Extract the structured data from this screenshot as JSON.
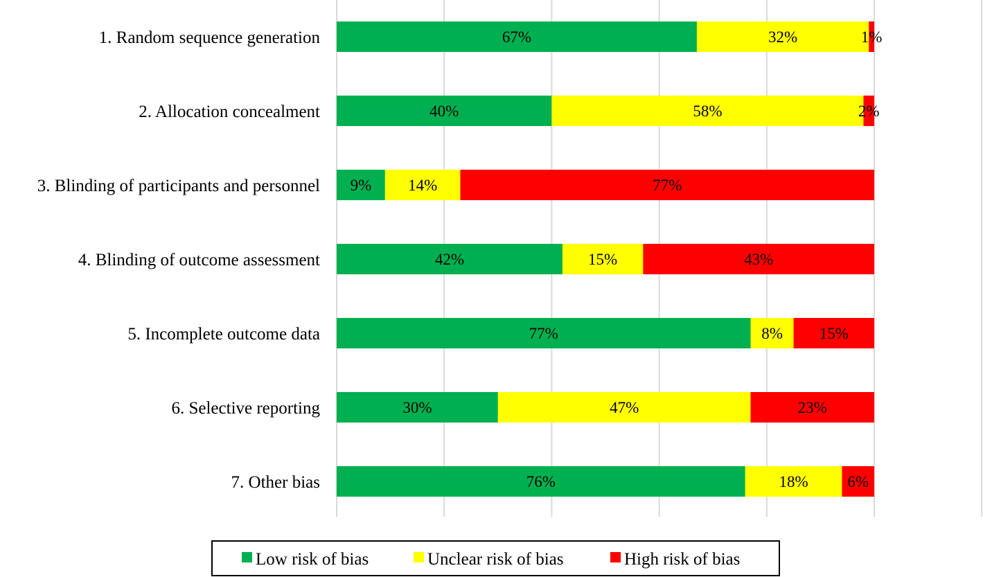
{
  "chart_data": {
    "type": "bar",
    "orientation": "horizontal",
    "stacked": true,
    "categories": [
      "1. Random sequence generation",
      "2. Allocation concealment",
      "3. Blinding of participants and personnel",
      "4. Blinding of outcome assessment",
      "5. Incomplete outcome data",
      "6. Selective reporting",
      "7. Other bias"
    ],
    "series": [
      {
        "name": "Low risk of bias",
        "color": "#00b050",
        "values": [
          67,
          40,
          9,
          42,
          77,
          30,
          76
        ],
        "labels": [
          "67%",
          "40%",
          "9%",
          "42%",
          "77%",
          "30%",
          "76%"
        ]
      },
      {
        "name": "Unclear risk of bias",
        "color": "#ffff00",
        "values": [
          32,
          58,
          14,
          15,
          8,
          47,
          18
        ],
        "labels": [
          "32%",
          "58%",
          "14%",
          "15%",
          "8%",
          "47%",
          "18%"
        ]
      },
      {
        "name": "High risk of bias",
        "color": "#ff0000",
        "values": [
          1,
          2,
          77,
          43,
          15,
          23,
          6
        ],
        "labels": [
          "1%",
          "2%",
          "77%",
          "43%",
          "15%",
          "23%",
          "6%"
        ]
      }
    ],
    "xlim": [
      0,
      120
    ],
    "grid_step": 20,
    "grid": true,
    "legend": "bottom",
    "title": "",
    "xlabel": "",
    "ylabel": ""
  }
}
